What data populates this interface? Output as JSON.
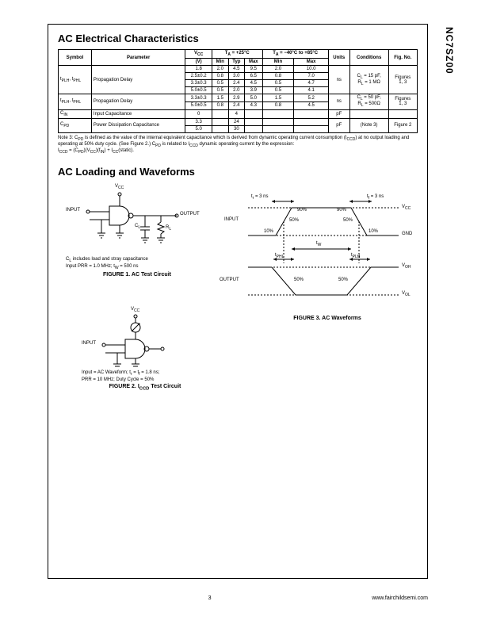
{
  "part_number": "NC7SZ00",
  "section1_title": "AC Electrical Characteristics",
  "section2_title": "AC Loading and Waveforms",
  "table": {
    "head": {
      "symbol": "Symbol",
      "parameter": "Parameter",
      "vcc": "V",
      "vcc_sub": "CC",
      "vcc_unit": "(V)",
      "ta25": "T",
      "ta25_cond": " = +25°C",
      "ta40": "T",
      "ta40_cond": " = −40°C to +85°C",
      "units": "Units",
      "conditions": "Conditions",
      "figno": "Fig. No.",
      "min": "Min",
      "typ": "Typ",
      "max": "Max"
    },
    "rows": [
      {
        "symbol": "t<sub>PLH</sub>, t<sub>PHL</sub>",
        "parameter": "Propagation Delay",
        "sub": [
          {
            "vcc": "1.8",
            "min": "2.0",
            "typ": "4.5",
            "max": "9.5",
            "min2": "2.0",
            "max2": "10.0"
          },
          {
            "vcc": "2.5±0.2",
            "min": "0.8",
            "typ": "3.0",
            "max": "6.5",
            "min2": "0.8",
            "max2": "7.0"
          },
          {
            "vcc": "3.3±0.3",
            "min": "0.5",
            "typ": "2.4",
            "max": "4.5",
            "min2": "0.5",
            "max2": "4.7"
          },
          {
            "vcc": "5.0±0.5",
            "min": "0.5",
            "typ": "2.0",
            "max": "3.9",
            "min2": "0.5",
            "max2": "4.1"
          }
        ],
        "units": "ns",
        "conditions": "C<sub>L</sub> = 15 pF,<br>R<sub>L</sub> = 1 MΩ",
        "figno": "Figures<br>1, 3"
      },
      {
        "symbol": "t<sub>PLH</sub>, t<sub>PHL</sub>",
        "parameter": "Propagation Delay",
        "sub": [
          {
            "vcc": "3.3±0.3",
            "min": "1.5",
            "typ": "2.9",
            "max": "5.0",
            "min2": "1.5",
            "max2": "5.2"
          },
          {
            "vcc": "5.0±0.5",
            "min": "0.8",
            "typ": "2.4",
            "max": "4.3",
            "min2": "0.8",
            "max2": "4.5"
          }
        ],
        "units": "ns",
        "conditions": "C<sub>L</sub> = 50 pF,<br>R<sub>L</sub> = 500Ω",
        "figno": "Figures<br>1, 3"
      },
      {
        "symbol": "C<sub>IN</sub>",
        "parameter": "Input Capacitance",
        "sub": [
          {
            "vcc": "0",
            "min": "",
            "typ": "4",
            "max": "",
            "min2": "",
            "max2": ""
          }
        ],
        "units": "pF",
        "conditions": "",
        "figno": ""
      },
      {
        "symbol": "C<sub>PD</sub>",
        "parameter": "Power Dissipation Capacitance",
        "sub": [
          {
            "vcc": "3.3",
            "min": "",
            "typ": "24",
            "max": "",
            "min2": "",
            "max2": ""
          },
          {
            "vcc": "5.0",
            "min": "",
            "typ": "30",
            "max": "",
            "min2": "",
            "max2": ""
          }
        ],
        "units": "pF",
        "conditions": "(Note 3)",
        "figno": "Figure 2"
      }
    ]
  },
  "note3": "Note 3: C<sub>PD</sub> is defined as the value of the internal equivalent capacitance which is derived from dynamic operating current consumption (I<sub>CCD</sub>) at no output loading and operating at 50% duty cycle. (See Figure 2.) C<sub>PD</sub> is related to I<sub>CCD</sub> dynamic operating current by the expression:<br>I<sub>CCD</sub> = (C<sub>PD</sub>)(V<sub>CC</sub>)(f<sub>IN</sub>) + I<sub>CC</sub>(static).",
  "fig1": {
    "captions_small": "C<sub>L</sub> includes load and stray capacitance<br>Input PRR = 1.0 MHz; t<sub>W</sub> = 500 ns",
    "caption": "FIGURE 1. AC Test Circuit",
    "input": "INPUT",
    "output": "OUTPUT",
    "vcc": "V<sub>CC</sub>",
    "cl": "C<sub>L</sub>",
    "rl": "R<sub>L</sub>"
  },
  "fig2": {
    "captions_small": "Input = AC Waveform; t<sub>r</sub> = t<sub>f</sub> = 1.8 ns;<br>PRR = 10 MHz; Duty Cycle = 50%",
    "caption": "FIGURE 2. I<sub>CCD</sub> Test Circuit",
    "input": "INPUT",
    "vcc": "V<sub>CC</sub>"
  },
  "fig3": {
    "caption": "FIGURE 3. AC Waveforms",
    "labels": {
      "input": "INPUT",
      "output": "OUTPUT",
      "vcc": "V<sub>CC</sub>",
      "gnd": "GND",
      "voh": "V<sub>OH</sub>",
      "vol": "V<sub>OL</sub>",
      "tr": "t<sub>r</sub> = 3 ns",
      "tf": "t<sub>f</sub> = 3 ns",
      "tw": "t<sub>W</sub>",
      "tphl": "t<sub>PHL</sub>",
      "tplh": "t<sub>PLH</sub>",
      "p90": "90%",
      "p50": "50%",
      "p10": "10%"
    }
  },
  "footer": {
    "page": "3",
    "url": "www.fairchildsemi.com"
  }
}
